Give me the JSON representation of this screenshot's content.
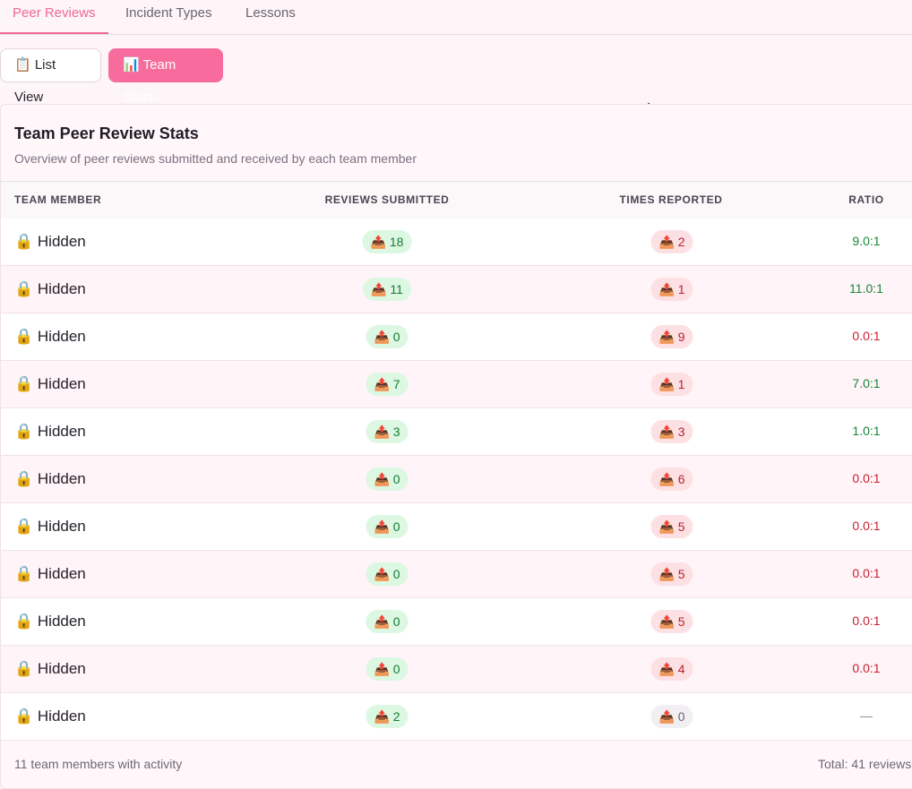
{
  "tabs": [
    {
      "label": "Peer Reviews",
      "active": true
    },
    {
      "label": "Incident Types",
      "active": false
    },
    {
      "label": "Lessons",
      "active": false
    }
  ],
  "view_buttons": {
    "list_view": "📋 List View",
    "team_stats": "📊 Team Stats"
  },
  "card": {
    "title": "Team Peer Review Stats",
    "subtitle": "Overview of peer reviews submitted and received by each team member"
  },
  "table": {
    "headers": [
      "TEAM MEMBER",
      "REVIEWS SUBMITTED",
      "TIMES REPORTED",
      "RATIO"
    ],
    "rows": [
      {
        "member": "🔒 Hidden",
        "submitted": "📤 18",
        "reported": "📤 2",
        "ratio": "9.0:1"
      },
      {
        "member": "🔒 Hidden",
        "submitted": "📤 11",
        "reported": "📤 1",
        "ratio": "11.0:1"
      },
      {
        "member": "🔒 Hidden",
        "submitted": "📤 0",
        "reported": "📤 9",
        "ratio": "0.0:1"
      },
      {
        "member": "🔒 Hidden",
        "submitted": "📤 7",
        "reported": "📤 1",
        "ratio": "7.0:1"
      },
      {
        "member": "🔒 Hidden",
        "submitted": "📤 3",
        "reported": "📤 3",
        "ratio": "1.0:1"
      },
      {
        "member": "🔒 Hidden",
        "submitted": "📤 0",
        "reported": "📤 6",
        "ratio": "0.0:1"
      },
      {
        "member": "🔒 Hidden",
        "submitted": "📤 0",
        "reported": "📤 5",
        "ratio": "0.0:1"
      },
      {
        "member": "🔒 Hidden",
        "submitted": "📤 0",
        "reported": "📤 5",
        "ratio": "0.0:1"
      },
      {
        "member": "🔒 Hidden",
        "submitted": "📤 0",
        "reported": "📤 5",
        "ratio": "0.0:1"
      },
      {
        "member": "🔒 Hidden",
        "submitted": "📤 0",
        "reported": "📤 4",
        "ratio": "0.0:1"
      },
      {
        "member": "🔒 Hidden",
        "submitted": "📤 2",
        "reported": "📤 0",
        "ratio": "—"
      }
    ]
  },
  "footer": {
    "summary": "11 team members with activity",
    "total": "Total: 41 reviews"
  },
  "colors": {
    "accent": "#f76c9c",
    "positive": "#17863a",
    "negative": "#c81e2e"
  }
}
